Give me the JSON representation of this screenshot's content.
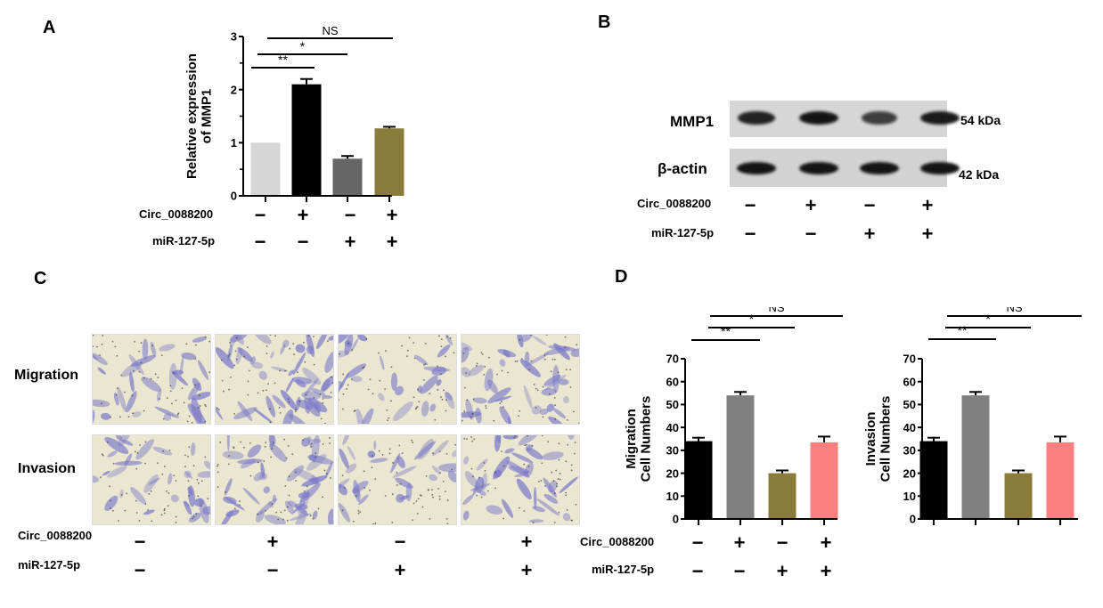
{
  "panels": {
    "A": {
      "letter": "A"
    },
    "B": {
      "letter": "B"
    },
    "C": {
      "letter": "C"
    },
    "D": {
      "letter": "D"
    }
  },
  "conditions": {
    "row1_label": "Circ_0088200",
    "row2_label": "miR-127-5p",
    "row1_signs": [
      "−",
      "+",
      "−",
      "+"
    ],
    "row2_signs": [
      "−",
      "−",
      "+",
      "+"
    ]
  },
  "panelB": {
    "protein1": "MMP1",
    "protein1_kda": "54  kDa",
    "protein2": "β-actin",
    "protein2_kda": "42  kDa",
    "mmp1_intensity": [
      0.85,
      1.0,
      0.6,
      0.95
    ],
    "actin_intensity": [
      1.0,
      1.0,
      1.0,
      1.0
    ]
  },
  "panelC": {
    "row_migration": "Migration",
    "row_invasion": "Invasion"
  },
  "chart_data": [
    {
      "type": "bar",
      "panel": "A",
      "title": "",
      "ylabel": "Relative expression of MMP1",
      "ylabel_line1": "Relative expression",
      "ylabel_line2": "of MMP1",
      "xlabel": "",
      "ylim": [
        0,
        3
      ],
      "yticks": [
        "0",
        "1",
        "2",
        "3"
      ],
      "categories": [
        "Circ−/miR−",
        "Circ+/miR−",
        "Circ−/miR+",
        "Circ+/miR+"
      ],
      "values": [
        1.0,
        2.1,
        0.7,
        1.27
      ],
      "errors": [
        0,
        0.1,
        0.05,
        0.03
      ],
      "colors": [
        "#d6d6d6",
        "#000000",
        "#666666",
        "#8b7b3a"
      ],
      "significance": [
        {
          "from": 0,
          "to": 1,
          "label": "**"
        },
        {
          "from": 0,
          "to": 2,
          "label": "*"
        },
        {
          "from": 0,
          "to": 3,
          "label": "NS"
        }
      ],
      "grid": false
    },
    {
      "type": "bar",
      "panel": "D-left",
      "title": "",
      "ylabel": "Migration Cell Numbers",
      "ylabel_line1": "Migration",
      "ylabel_line2": "Cell Numbers",
      "xlabel": "",
      "ylim": [
        0,
        70
      ],
      "yticks": [
        "0",
        "10",
        "20",
        "30",
        "40",
        "50",
        "60",
        "70"
      ],
      "categories": [
        "Circ−/miR−",
        "Circ+/miR−",
        "Circ−/miR+",
        "Circ+/miR+"
      ],
      "values": [
        34,
        54,
        20,
        33.5
      ],
      "errors": [
        1.5,
        1.5,
        1.2,
        2.5
      ],
      "colors": [
        "#000000",
        "#808080",
        "#8b7b3a",
        "#fa8080"
      ],
      "significance": [
        {
          "from": 0,
          "to": 1,
          "label": "**"
        },
        {
          "from": 0,
          "to": 2,
          "label": "*"
        },
        {
          "from": 0,
          "to": 3,
          "label": "NS"
        }
      ],
      "grid": false
    },
    {
      "type": "bar",
      "panel": "D-right",
      "title": "",
      "ylabel": "Invasion Cell Numbers",
      "ylabel_line1": "Invasion",
      "ylabel_line2": "Cell Numbers",
      "xlabel": "",
      "ylim": [
        0,
        70
      ],
      "yticks": [
        "0",
        "10",
        "20",
        "30",
        "40",
        "50",
        "60",
        "70"
      ],
      "categories": [
        "Circ−/miR−",
        "Circ+/miR−",
        "Circ−/miR+",
        "Circ+/miR+"
      ],
      "values": [
        34,
        54,
        20,
        33.5
      ],
      "errors": [
        1.5,
        1.5,
        1.2,
        2.5
      ],
      "colors": [
        "#000000",
        "#808080",
        "#8b7b3a",
        "#fa8080"
      ],
      "significance": [
        {
          "from": 0,
          "to": 1,
          "label": "**"
        },
        {
          "from": 0,
          "to": 2,
          "label": "*"
        },
        {
          "from": 0,
          "to": 3,
          "label": "NS"
        }
      ],
      "grid": false
    }
  ]
}
